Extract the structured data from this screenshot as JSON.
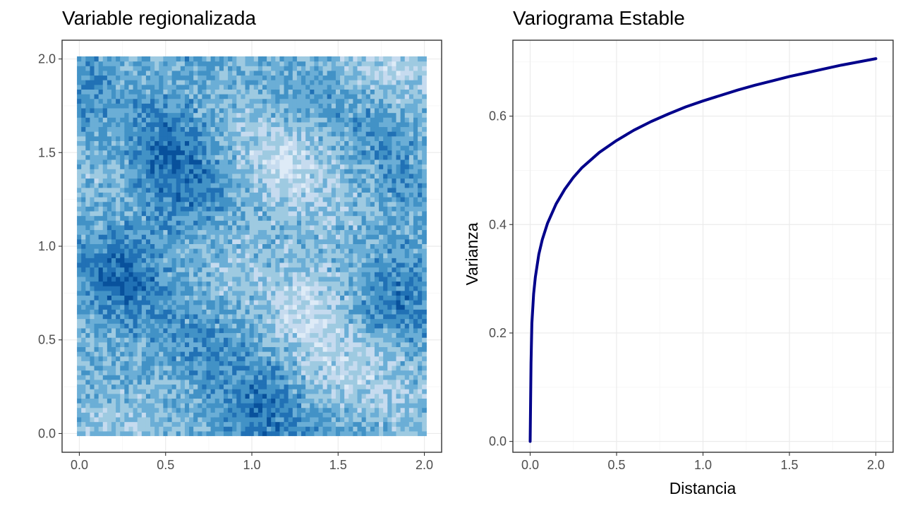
{
  "colors": {
    "background": "#ffffff",
    "panel_border": "#333333",
    "grid_major": "#ebebeb",
    "grid_minor": "#f5f5f5",
    "tick_text": "#4d4d4d",
    "curve": "#00008b",
    "field_palette": [
      "#08519c",
      "#2171b5",
      "#4292c6",
      "#6baed6",
      "#9ecae1",
      "#c6dbef",
      "#deebf7"
    ]
  },
  "chart_data": [
    {
      "type": "heatmap",
      "title": "Variable regionalizada",
      "xlabel": "",
      "ylabel": "",
      "xlim": [
        -0.1,
        2.1
      ],
      "ylim": [
        -0.1,
        2.1
      ],
      "x_ticks": [
        0.0,
        0.5,
        1.0,
        1.5,
        2.0
      ],
      "y_ticks": [
        0.0,
        0.5,
        1.0,
        1.5,
        2.0
      ],
      "x_tick_labels": [
        "0.0",
        "0.5",
        "1.0",
        "1.5",
        "2.0"
      ],
      "y_tick_labels": [
        "0.0",
        "0.5",
        "1.0",
        "1.5",
        "2.0"
      ],
      "grid": true,
      "legend": "none",
      "field_extent": {
        "x": [
          0,
          2
        ],
        "y": [
          0,
          2
        ]
      },
      "grid_resolution": 0.025,
      "smooth_features": [
        {
          "x": 1.85,
          "y": 1.95,
          "amp": -1.2
        },
        {
          "x": 1.2,
          "y": 1.45,
          "amp": -1.2
        },
        {
          "x": 1.3,
          "y": 0.7,
          "amp": -0.9
        },
        {
          "x": 1.6,
          "y": 0.3,
          "amp": -1.0
        },
        {
          "x": 0.2,
          "y": 0.05,
          "amp": -0.8
        },
        {
          "x": 1.0,
          "y": 1.05,
          "amp": -0.5
        },
        {
          "x": 0.2,
          "y": 0.85,
          "amp": 1.1
        },
        {
          "x": 0.55,
          "y": 1.5,
          "amp": 1.0
        },
        {
          "x": 1.1,
          "y": 0.05,
          "amp": 1.1
        },
        {
          "x": 1.7,
          "y": 1.75,
          "amp": 0.8
        },
        {
          "x": 1.95,
          "y": 0.75,
          "amp": 0.9
        },
        {
          "x": 0.7,
          "y": 1.2,
          "amp": 0.6
        },
        {
          "x": 0.15,
          "y": 1.9,
          "amp": 0.6
        },
        {
          "x": 0.65,
          "y": 0.4,
          "amp": 0.6
        }
      ]
    },
    {
      "type": "line",
      "title": "Variograma Estable",
      "xlabel": "Distancia",
      "ylabel": "Varianza",
      "xlim": [
        -0.1,
        2.1
      ],
      "ylim": [
        -0.02,
        0.74
      ],
      "x_ticks": [
        0.0,
        0.5,
        1.0,
        1.5,
        2.0
      ],
      "y_ticks": [
        0.0,
        0.2,
        0.4,
        0.6
      ],
      "x_tick_labels": [
        "0.0",
        "0.5",
        "1.0",
        "1.5",
        "2.0"
      ],
      "y_tick_labels": [
        "0.0",
        "0.2",
        "0.4",
        "0.6"
      ],
      "grid": true,
      "legend": "none",
      "series": [
        {
          "color": "#00008b",
          "x": [
            0,
            0.005,
            0.01,
            0.02,
            0.03,
            0.05,
            0.07,
            0.1,
            0.15,
            0.2,
            0.25,
            0.3,
            0.4,
            0.5,
            0.6,
            0.7,
            0.8,
            0.9,
            1.0,
            1.1,
            1.2,
            1.3,
            1.4,
            1.5,
            1.6,
            1.7,
            1.8,
            1.9,
            2.0
          ],
          "y": [
            0,
            0.145,
            0.218,
            0.272,
            0.303,
            0.345,
            0.372,
            0.402,
            0.438,
            0.465,
            0.487,
            0.505,
            0.533,
            0.555,
            0.574,
            0.59,
            0.604,
            0.617,
            0.628,
            0.638,
            0.648,
            0.657,
            0.665,
            0.673,
            0.68,
            0.687,
            0.694,
            0.7,
            0.706
          ]
        }
      ]
    }
  ]
}
